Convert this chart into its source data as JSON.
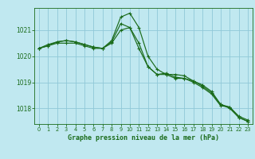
{
  "title": "Graphe pression niveau de la mer (hPa)",
  "background_color": "#c0e8f0",
  "plot_bg_color": "#c0e8f0",
  "grid_color": "#90c8d8",
  "line_color": "#1a6b1a",
  "ylim": [
    1017.4,
    1021.85
  ],
  "yticks": [
    1018,
    1019,
    1020,
    1021
  ],
  "xlim": [
    -0.5,
    23.5
  ],
  "xticks": [
    0,
    1,
    2,
    3,
    4,
    5,
    6,
    7,
    8,
    9,
    10,
    11,
    12,
    13,
    14,
    15,
    16,
    17,
    18,
    19,
    20,
    21,
    22,
    23
  ],
  "series": [
    [
      1020.3,
      1020.4,
      1020.5,
      1020.5,
      1020.5,
      1020.4,
      1020.3,
      1020.3,
      1020.5,
      1021.0,
      1021.1,
      1020.5,
      1019.6,
      1019.3,
      1019.3,
      1019.15,
      1019.15,
      1019.0,
      1018.8,
      1018.55,
      1018.1,
      1018.05,
      1017.7,
      1017.55
    ],
    [
      1020.3,
      1020.4,
      1020.55,
      1020.6,
      1020.55,
      1020.45,
      1020.35,
      1020.3,
      1020.55,
      1021.25,
      1021.1,
      1020.3,
      1019.6,
      1019.3,
      1019.35,
      1019.2,
      1019.15,
      1019.05,
      1018.85,
      1018.6,
      1018.15,
      1018.0,
      1017.65,
      1017.5
    ],
    [
      1020.3,
      1020.45,
      1020.55,
      1020.6,
      1020.55,
      1020.45,
      1020.35,
      1020.3,
      1020.6,
      1021.5,
      1021.65,
      1021.1,
      1020.0,
      1019.5,
      1019.3,
      1019.3,
      1019.25,
      1019.05,
      1018.9,
      1018.65,
      1018.15,
      1018.05,
      1017.65,
      1017.5
    ]
  ]
}
